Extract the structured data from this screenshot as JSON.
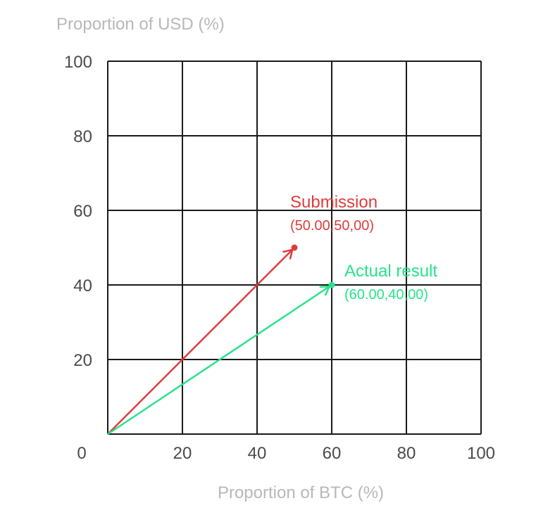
{
  "chart_data": {
    "type": "line",
    "title": "",
    "xlabel": "Proportion of BTC (%)",
    "ylabel": "Proportion of USD (%)",
    "xlim": [
      0,
      100
    ],
    "ylim": [
      0,
      100
    ],
    "grid": true,
    "x_ticks": [
      "20",
      "40",
      "60",
      "80",
      "100"
    ],
    "y_ticks": [
      "20",
      "40",
      "60",
      "80",
      "100"
    ],
    "origin_label": "0",
    "series": [
      {
        "label": "Submission",
        "coords_label": "(50.00,50,00)",
        "color": "#e03c3c",
        "x": [
          0,
          50
        ],
        "y": [
          0,
          50
        ]
      },
      {
        "label": "Actual result",
        "coords_label": "(60.00,40,00)",
        "color": "#27e38b",
        "x": [
          0,
          60
        ],
        "y": [
          0,
          40
        ]
      }
    ]
  }
}
